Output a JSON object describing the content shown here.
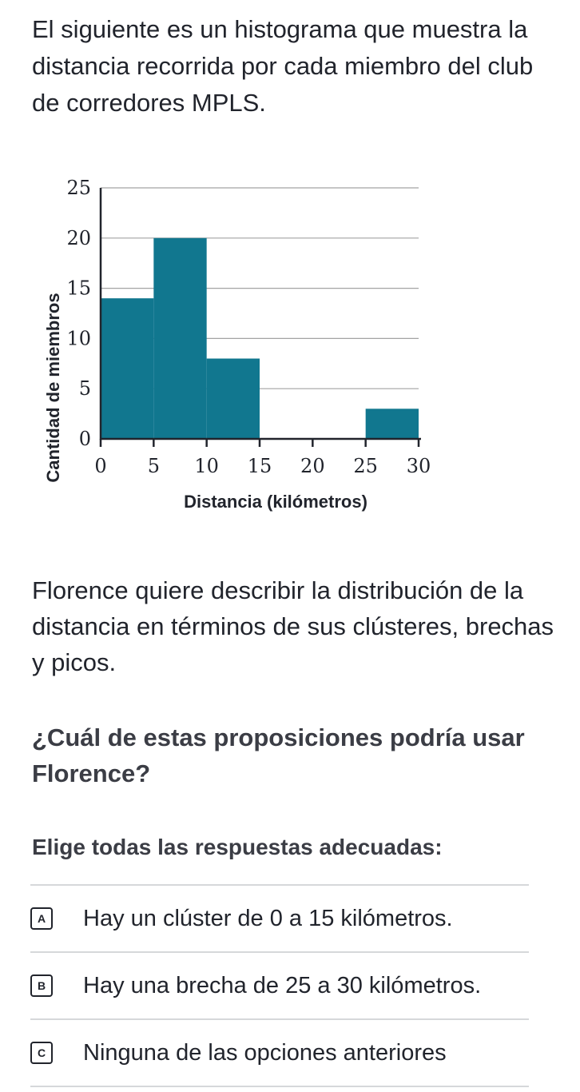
{
  "intro": "El siguiente es un histograma que muestra la distancia recorrida por cada miembro del club de corredores MPLS.",
  "chart_data": {
    "type": "bar",
    "bins": [
      {
        "start": 0,
        "end": 5,
        "count": 14
      },
      {
        "start": 5,
        "end": 10,
        "count": 20
      },
      {
        "start": 10,
        "end": 15,
        "count": 8
      },
      {
        "start": 15,
        "end": 20,
        "count": 0
      },
      {
        "start": 20,
        "end": 25,
        "count": 0
      },
      {
        "start": 25,
        "end": 30,
        "count": 3
      }
    ],
    "xlabel": "Distancia (kilómetros)",
    "ylabel": "Cantidad de miembros",
    "xlim": [
      0,
      30
    ],
    "ylim": [
      0,
      25
    ],
    "xticks": [
      "0",
      "5",
      "10",
      "15",
      "20",
      "25",
      "30"
    ],
    "yticks": [
      "0",
      "5",
      "10",
      "15",
      "20",
      "25"
    ],
    "grid": true,
    "bar_color": "#11778f"
  },
  "description": "Florence quiere describir la distribución de la distancia en términos de sus clústeres, brechas y picos.",
  "question": "¿Cuál de estas proposiciones podría usar Florence?",
  "instruction": "Elige todas las respuestas adecuadas:",
  "choices": [
    {
      "letter": "A",
      "text": "Hay un clúster de 0 a 15 kilómetros."
    },
    {
      "letter": "B",
      "text": "Hay una brecha de 25 a 30 kilómetros."
    },
    {
      "letter": "C",
      "text": "Ninguna de las opciones anteriores"
    }
  ]
}
